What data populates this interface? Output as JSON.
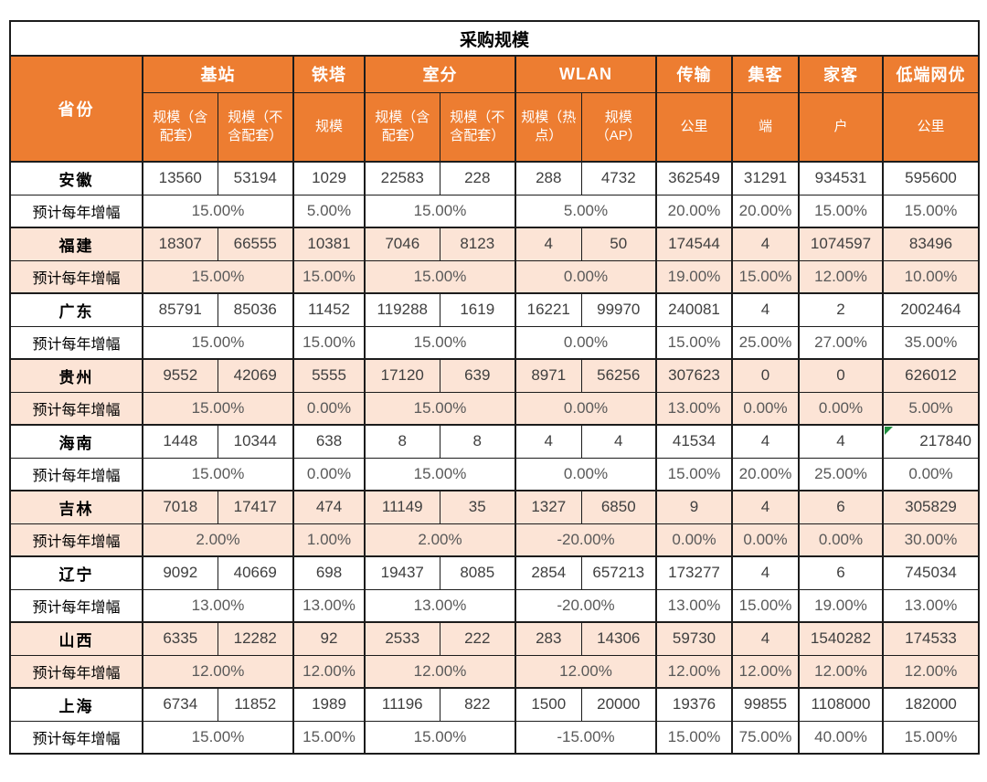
{
  "title": "采购规模",
  "header": {
    "province": "省份",
    "groups": [
      {
        "label": "基站",
        "subs": [
          "规模（含配套）",
          "规模（不含配套）"
        ]
      },
      {
        "label": "铁塔",
        "subs": [
          "规模"
        ]
      },
      {
        "label": "室分",
        "subs": [
          "规模（含配套）",
          "规模（不含配套）"
        ]
      },
      {
        "label": "WLAN",
        "subs": [
          "规模（热点）",
          "规模（AP）"
        ]
      },
      {
        "label": "传输",
        "subs": [
          "公里"
        ]
      },
      {
        "label": "集客",
        "subs": [
          "端"
        ]
      },
      {
        "label": "家客",
        "subs": [
          "户"
        ]
      },
      {
        "label": "低端网优",
        "subs": [
          "公里"
        ]
      }
    ]
  },
  "growth_row_label": "预计每年增幅",
  "rows": [
    {
      "name": "安徽",
      "values": [
        "13560",
        "53194",
        "1029",
        "22583",
        "228",
        "288",
        "4732",
        "362549",
        "31291",
        "934531",
        "595600"
      ],
      "growth": [
        "15.00%",
        "5.00%",
        "15.00%",
        "5.00%",
        "20.00%",
        "20.00%",
        "15.00%",
        "15.00%"
      ]
    },
    {
      "name": "福建",
      "values": [
        "18307",
        "66555",
        "10381",
        "7046",
        "8123",
        "4",
        "50",
        "174544",
        "4",
        "1074597",
        "83496"
      ],
      "growth": [
        "15.00%",
        "15.00%",
        "15.00%",
        "0.00%",
        "19.00%",
        "15.00%",
        "12.00%",
        "10.00%"
      ]
    },
    {
      "name": "广东",
      "values": [
        "85791",
        "85036",
        "11452",
        "119288",
        "1619",
        "16221",
        "99970",
        "240081",
        "4",
        "2",
        "2002464"
      ],
      "growth": [
        "15.00%",
        "15.00%",
        "15.00%",
        "0.00%",
        "15.00%",
        "25.00%",
        "27.00%",
        "35.00%"
      ]
    },
    {
      "name": "贵州",
      "values": [
        "9552",
        "42069",
        "5555",
        "17120",
        "639",
        "8971",
        "56256",
        "307623",
        "0",
        "0",
        "626012"
      ],
      "growth": [
        "15.00%",
        "0.00%",
        "15.00%",
        "0.00%",
        "13.00%",
        "0.00%",
        "0.00%",
        "5.00%"
      ]
    },
    {
      "name": "海南",
      "values": [
        "1448",
        "10344",
        "638",
        "8",
        "8",
        "4",
        "4",
        "41534",
        "4",
        "4",
        "217840"
      ],
      "growth": [
        "15.00%",
        "0.00%",
        "15.00%",
        "0.00%",
        "15.00%",
        "20.00%",
        "25.00%",
        "0.00%"
      ],
      "marker_col": 10
    },
    {
      "name": "吉林",
      "values": [
        "7018",
        "17417",
        "474",
        "11149",
        "35",
        "1327",
        "6850",
        "9",
        "4",
        "6",
        "305829"
      ],
      "growth": [
        "2.00%",
        "1.00%",
        "2.00%",
        "-20.00%",
        "0.00%",
        "0.00%",
        "0.00%",
        "30.00%"
      ]
    },
    {
      "name": "辽宁",
      "values": [
        "9092",
        "40669",
        "698",
        "19437",
        "8085",
        "2854",
        "657213",
        "173277",
        "4",
        "6",
        "745034"
      ],
      "growth": [
        "13.00%",
        "13.00%",
        "13.00%",
        "-20.00%",
        "13.00%",
        "15.00%",
        "19.00%",
        "13.00%"
      ]
    },
    {
      "name": "山西",
      "values": [
        "6335",
        "12282",
        "92",
        "2533",
        "222",
        "283",
        "14306",
        "59730",
        "4",
        "1540282",
        "174533"
      ],
      "growth": [
        "12.00%",
        "12.00%",
        "12.00%",
        "12.00%",
        "12.00%",
        "12.00%",
        "12.00%",
        "12.00%"
      ]
    },
    {
      "name": "上海",
      "values": [
        "6734",
        "11852",
        "1989",
        "11196",
        "822",
        "1500",
        "20000",
        "19376",
        "99855",
        "1108000",
        "182000"
      ],
      "growth": [
        "15.00%",
        "15.00%",
        "15.00%",
        "-15.00%",
        "15.00%",
        "75.00%",
        "40.00%",
        "15.00%"
      ]
    }
  ],
  "marker": {
    "type": "green-triangle",
    "color": "#1e8e3e",
    "meaning": "cell-error-indicator"
  },
  "colors": {
    "header_bg": "#ED7D31",
    "header_text": "#FFFFFF",
    "band_bg": "#FCE4D6",
    "row_bg": "#FFFFFF",
    "border": "#1C1C1C",
    "number_text": "#3F3F3F",
    "percent_text": "#595959",
    "label_text": "#000000"
  }
}
